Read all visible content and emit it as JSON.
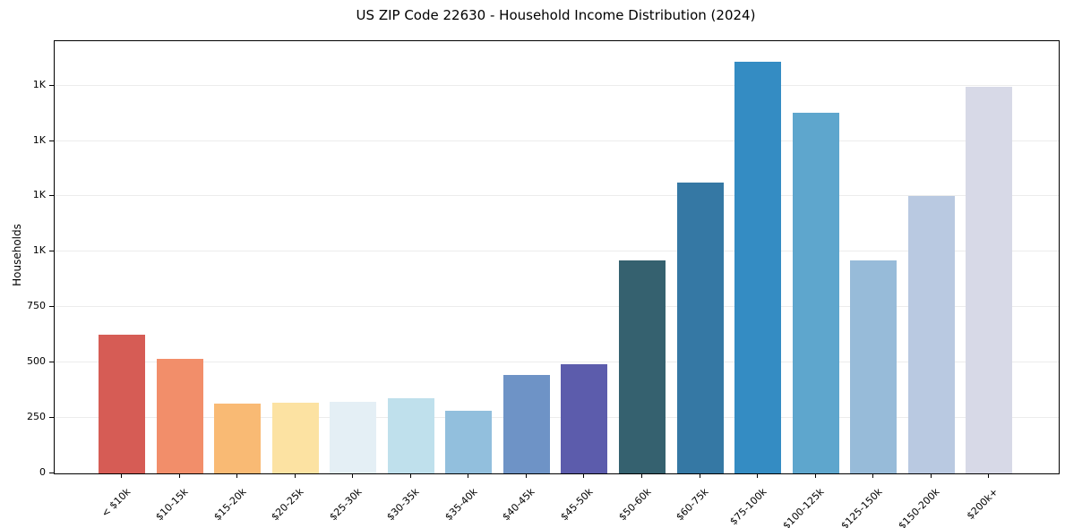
{
  "chart_data": {
    "type": "bar",
    "title": "US ZIP Code 22630 - Household Income Distribution (2024)",
    "xlabel": "",
    "ylabel": "Households",
    "categories": [
      "< $10k",
      "$10-15k",
      "$15-20k",
      "$20-25k",
      "$25-30k",
      "$30-35k",
      "$35-40k",
      "$40-45k",
      "$45-50k",
      "$50-60k",
      "$60-75k",
      "$75-100k",
      "$100-125k",
      "$125-150k",
      "$150-200k",
      "$200k+"
    ],
    "values": [
      627,
      516,
      316,
      320,
      323,
      338,
      284,
      444,
      494,
      963,
      1313,
      1857,
      1629,
      962,
      1253,
      1743
    ],
    "bar_colors": [
      "#d65c55",
      "#f28e6a",
      "#f9ba74",
      "#fce2a2",
      "#e4eff5",
      "#bfe0ec",
      "#92bfdd",
      "#6e93c6",
      "#5c5cac",
      "#35616f",
      "#3578a4",
      "#348cc3",
      "#5ea6cd",
      "#97bbd9",
      "#b9c9e1",
      "#d7d9e7"
    ],
    "ylim": [
      0,
      1950
    ],
    "yticks": [
      {
        "value": 0,
        "label": "0"
      },
      {
        "value": 250,
        "label": "250"
      },
      {
        "value": 500,
        "label": "500"
      },
      {
        "value": 750,
        "label": "750"
      },
      {
        "value": 1000,
        "label": "1K"
      },
      {
        "value": 1250,
        "label": "1K"
      },
      {
        "value": 1500,
        "label": "1K"
      },
      {
        "value": 1750,
        "label": "1K"
      }
    ],
    "grid": "horizontal",
    "legend": "none"
  },
  "colors": {
    "background": "#ffffff",
    "grid": "#ececec",
    "spine": "#000000",
    "text": "#000000"
  }
}
